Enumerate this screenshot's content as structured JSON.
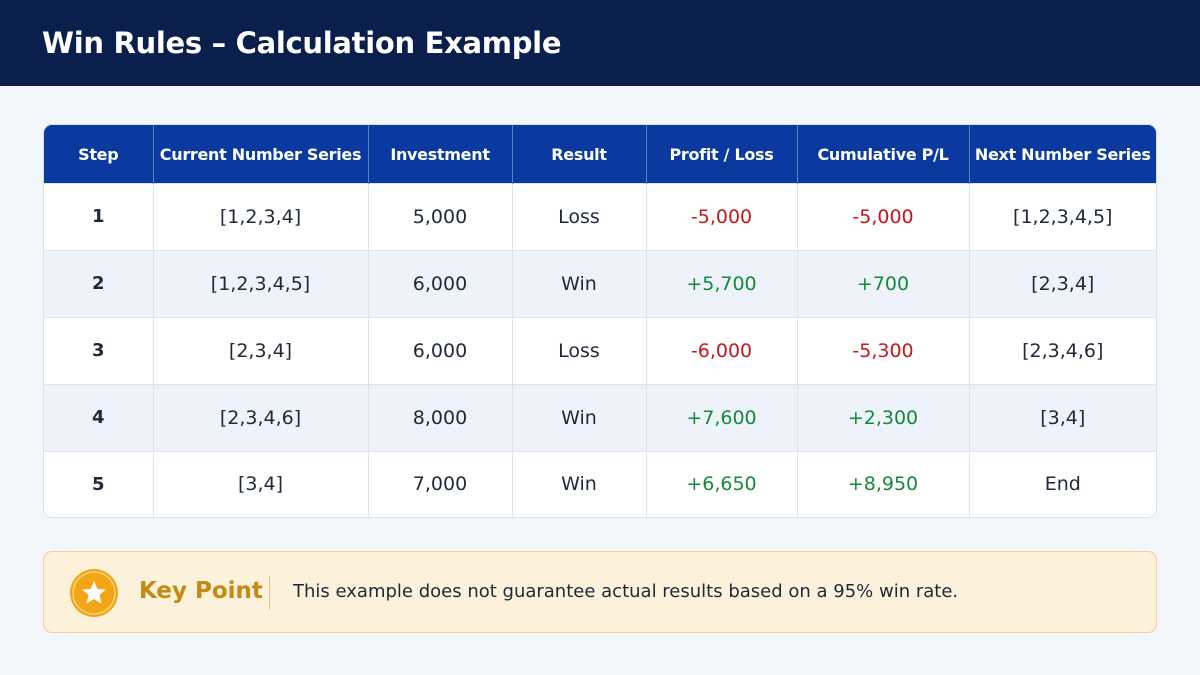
{
  "header": {
    "title": "Win Rules – Calculation Example"
  },
  "table": {
    "columns": [
      "Step",
      "Current Number Series",
      "Investment",
      "Result",
      "Profit / Loss",
      "Cumulative P/L",
      "Next Number Series"
    ],
    "rows": [
      [
        "1",
        "[1,2,3,4]",
        "5,000",
        "Loss",
        "-5,000",
        "-5,000",
        "[1,2,3,4,5]"
      ],
      [
        "2",
        "[1,2,3,4,5]",
        "6,000",
        "Win",
        "+5,700",
        "+700",
        "[2,3,4]"
      ],
      [
        "3",
        "[2,3,4]",
        "6,000",
        "Loss",
        "-6,000",
        "-5,300",
        "[2,3,4,6]"
      ],
      [
        "4",
        "[2,3,4,6]",
        "8,000",
        "Win",
        "+7,600",
        "+2,300",
        "[3,4]"
      ],
      [
        "5",
        "[3,4]",
        "7,000",
        "Win",
        "+6,650",
        "+8,950",
        "End"
      ]
    ]
  },
  "note": {
    "label": "Key Point",
    "text": "This example does not guarantee actual results based on a 95% win rate."
  }
}
